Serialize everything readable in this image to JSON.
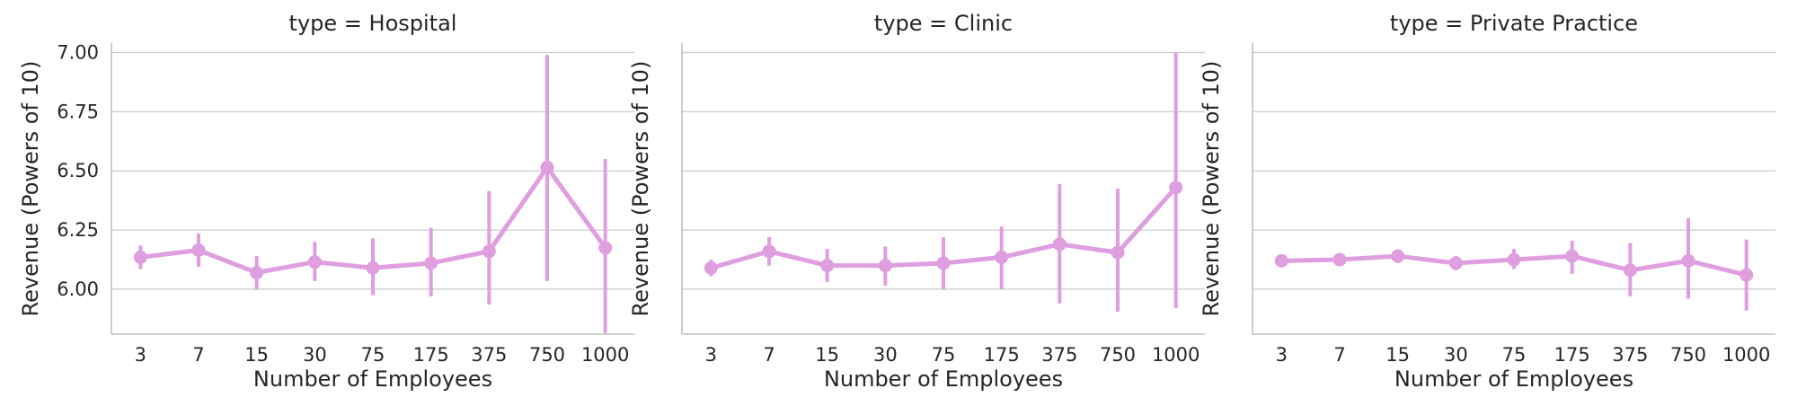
{
  "chart_data": [
    {
      "type": "pointplot",
      "title": "type = Hospital",
      "xlabel": "Number of Employees",
      "ylabel": "Revenue (Powers of 10)",
      "categories": [
        "3",
        "7",
        "15",
        "30",
        "75",
        "175",
        "375",
        "750",
        "1000"
      ],
      "ylim": [
        5.81,
        7.04
      ],
      "yticks": [
        "6.00",
        "6.25",
        "6.50",
        "6.75",
        "7.00"
      ],
      "grid": true,
      "color": "#df9ee0",
      "values": [
        6.135,
        6.165,
        6.07,
        6.115,
        6.09,
        6.11,
        6.16,
        6.515,
        6.175
      ],
      "ci_low": [
        6.085,
        6.095,
        6.0,
        6.035,
        5.975,
        5.97,
        5.935,
        6.035,
        5.815
      ],
      "ci_high": [
        6.185,
        6.235,
        6.14,
        6.2,
        6.215,
        6.26,
        6.415,
        6.99,
        6.55
      ]
    },
    {
      "type": "pointplot",
      "title": "type = Clinic",
      "xlabel": "Number of Employees",
      "ylabel": "Revenue (Powers of 10)",
      "categories": [
        "3",
        "7",
        "15",
        "30",
        "75",
        "175",
        "375",
        "750",
        "1000"
      ],
      "ylim": [
        5.81,
        7.04
      ],
      "grid": true,
      "color": "#df9ee0",
      "values": [
        6.09,
        6.16,
        6.1,
        6.1,
        6.11,
        6.135,
        6.19,
        6.155,
        6.43
      ],
      "ci_low": [
        6.055,
        6.1,
        6.03,
        6.015,
        6.0,
        6.0,
        5.94,
        5.905,
        5.92
      ],
      "ci_high": [
        6.125,
        6.22,
        6.17,
        6.18,
        6.22,
        6.265,
        6.445,
        6.425,
        7.0
      ]
    },
    {
      "type": "pointplot",
      "title": "type = Private Practice",
      "xlabel": "Number of Employees",
      "ylabel": "Revenue (Powers of 10)",
      "categories": [
        "3",
        "7",
        "15",
        "30",
        "75",
        "175",
        "375",
        "750",
        "1000"
      ],
      "ylim": [
        5.81,
        7.04
      ],
      "grid": true,
      "color": "#df9ee0",
      "values": [
        6.12,
        6.125,
        6.14,
        6.11,
        6.125,
        6.14,
        6.08,
        6.12,
        6.06
      ],
      "ci_low": [
        6.105,
        6.11,
        6.11,
        6.08,
        6.085,
        6.065,
        5.97,
        5.96,
        5.91
      ],
      "ci_high": [
        6.135,
        6.14,
        6.165,
        6.14,
        6.17,
        6.205,
        6.195,
        6.3,
        6.21
      ]
    }
  ]
}
